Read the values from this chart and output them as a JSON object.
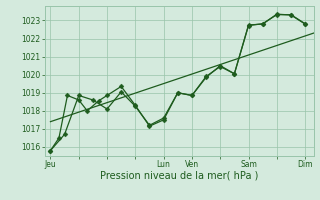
{
  "xlabel": "Pression niveau de la mer( hPa )",
  "background_color": "#d4eadd",
  "grid_color": "#99c4aa",
  "line_color": "#1e5c1e",
  "ylim": [
    1015.5,
    1023.8
  ],
  "yticks": [
    1016,
    1017,
    1018,
    1019,
    1020,
    1021,
    1022,
    1023
  ],
  "xtick_labels": [
    "Jeu",
    "",
    "",
    "",
    "Lun",
    "Ven",
    "",
    "Sam",
    "",
    "Dim"
  ],
  "xtick_positions": [
    0,
    1,
    2,
    3,
    4,
    5,
    6,
    7,
    8,
    9
  ],
  "xlim": [
    -0.2,
    9.3
  ],
  "trend_x": [
    0,
    9.3
  ],
  "trend_y": [
    1017.4,
    1022.3
  ],
  "s1_x": [
    0,
    0.3,
    0.6,
    1.0,
    1.3,
    1.7,
    2.0,
    2.5,
    3.0,
    3.5,
    4.0,
    4.5,
    5.0,
    5.5,
    6.0,
    6.5,
    7.0,
    7.5,
    8.0,
    8.5,
    9.0
  ],
  "s1_y": [
    1015.8,
    1016.5,
    1018.85,
    1018.6,
    1018.0,
    1018.55,
    1018.85,
    1019.35,
    1018.3,
    1017.15,
    1017.5,
    1019.0,
    1018.85,
    1019.85,
    1020.5,
    1020.05,
    1022.75,
    1022.8,
    1023.35,
    1023.3,
    1022.8
  ],
  "s2_x": [
    0,
    0.5,
    1.0,
    1.5,
    2.0,
    2.5,
    3.0,
    3.5,
    4.0,
    4.5,
    5.0,
    5.5,
    6.0,
    6.5,
    7.0,
    7.5,
    8.0,
    8.5,
    9.0
  ],
  "s2_y": [
    1015.8,
    1016.7,
    1018.85,
    1018.6,
    1018.1,
    1019.05,
    1018.25,
    1017.2,
    1017.6,
    1019.0,
    1018.85,
    1019.9,
    1020.45,
    1020.05,
    1022.72,
    1022.82,
    1023.32,
    1023.32,
    1022.82
  ],
  "marker_size": 2.5,
  "line_width": 0.9,
  "tick_fontsize": 5.5,
  "xlabel_fontsize": 7
}
